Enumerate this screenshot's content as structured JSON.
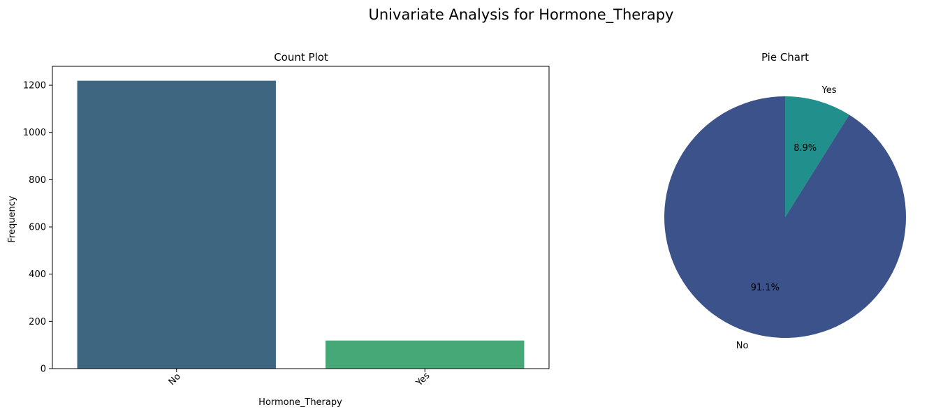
{
  "figure": {
    "suptitle": "Univariate Analysis for Hormone_Therapy"
  },
  "chart_data": [
    {
      "type": "bar",
      "title": "Count Plot",
      "xlabel": "Hormone_Therapy",
      "ylabel": "Frequency",
      "categories": [
        "No",
        "Yes"
      ],
      "values": [
        1219,
        119
      ],
      "colors": [
        "#3e6680",
        "#47a877"
      ],
      "ylim": [
        0,
        1280
      ],
      "yticks": [
        0,
        200,
        400,
        600,
        800,
        1000,
        1200
      ],
      "ytick_labels": [
        "0",
        "200",
        "400",
        "600",
        "800",
        "1000",
        "1200"
      ],
      "xtick_rotation_deg": 45,
      "grid": false
    },
    {
      "type": "pie",
      "title": "Pie Chart",
      "labels": [
        "Yes",
        "No"
      ],
      "values": [
        8.9,
        91.1
      ],
      "pct_labels": [
        "8.9%",
        "91.1%"
      ],
      "colors": [
        "#21908c",
        "#3c528a"
      ],
      "start_angle_deg": 90,
      "direction": "clockwise"
    }
  ]
}
